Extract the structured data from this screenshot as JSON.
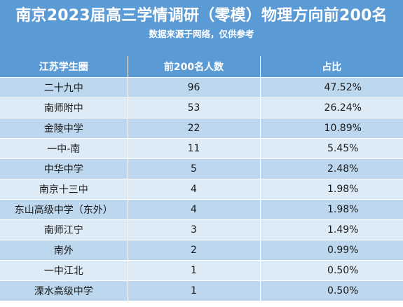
{
  "header": {
    "title": "南京2023届高三学情调研（零模）物理方向前200名",
    "subtitle": "数据来源于网络，仅供参考"
  },
  "table": {
    "columns": [
      "江苏学生圈",
      "前200名人数",
      "占比"
    ],
    "rows": [
      {
        "school": "二十九中",
        "count": "96",
        "ratio": "47.52%"
      },
      {
        "school": "南师附中",
        "count": "53",
        "ratio": "26.24%"
      },
      {
        "school": "金陵中学",
        "count": "22",
        "ratio": "10.89%"
      },
      {
        "school": "一中-南",
        "count": "11",
        "ratio": "5.45%"
      },
      {
        "school": "中华中学",
        "count": "5",
        "ratio": "2.48%"
      },
      {
        "school": "南京十三中",
        "count": "4",
        "ratio": "1.98%"
      },
      {
        "school": "东山高级中学（东外）",
        "count": "4",
        "ratio": "1.98%"
      },
      {
        "school": "南师江宁",
        "count": "3",
        "ratio": "1.49%"
      },
      {
        "school": "南外",
        "count": "2",
        "ratio": "0.99%"
      },
      {
        "school": "一中江北",
        "count": "1",
        "ratio": "0.50%"
      },
      {
        "school": "溧水高级中学",
        "count": "1",
        "ratio": "0.50%"
      }
    ]
  },
  "colors": {
    "header_blue": "#5b9bd5",
    "row_dark": "#bdd7ee",
    "row_light": "#ddebf7"
  }
}
